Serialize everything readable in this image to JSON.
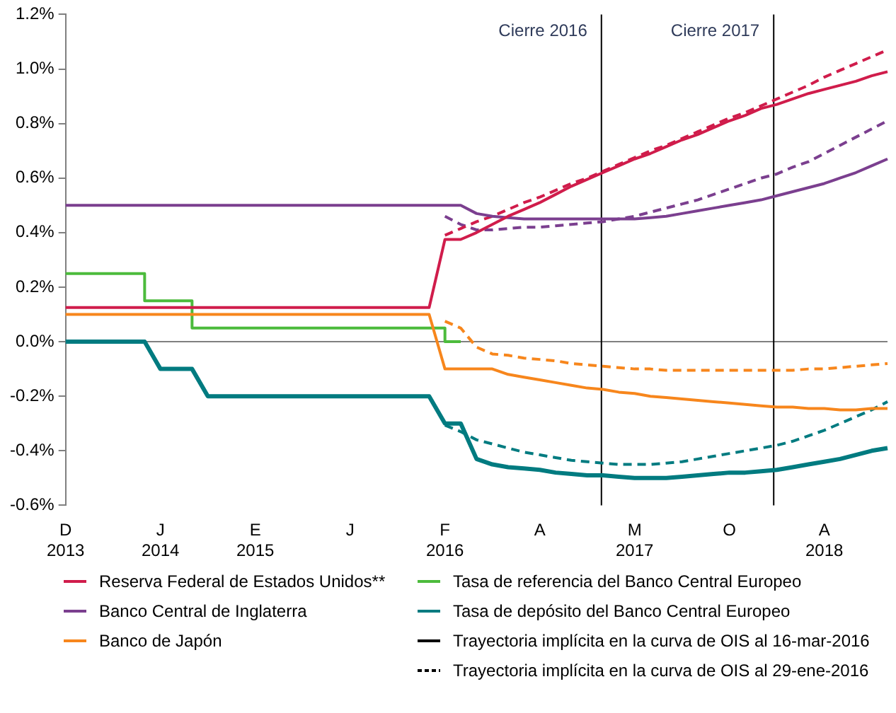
{
  "chart_data": {
    "type": "line",
    "categories": [
      "D\n2013",
      null,
      null,
      null,
      null,
      null,
      "J\n2014",
      null,
      null,
      null,
      null,
      null,
      "E\n2015",
      null,
      null,
      null,
      null,
      null,
      "J",
      null,
      null,
      null,
      null,
      null,
      "F\n2016",
      null,
      null,
      null,
      null,
      null,
      "A",
      null,
      null,
      null,
      null,
      null,
      "M\n2017",
      null,
      null,
      null,
      null,
      null,
      "O",
      null,
      null,
      null,
      null,
      null,
      "A\n2018",
      null,
      null,
      null,
      null
    ],
    "ylim": [
      -0.6,
      1.2
    ],
    "yticks": [
      {
        "value": -0.6,
        "label": "-0.6%"
      },
      {
        "value": -0.4,
        "label": "-0.4%"
      },
      {
        "value": -0.2,
        "label": "-0.2%"
      },
      {
        "value": 0,
        "label": "0.0%"
      },
      {
        "value": 0.2,
        "label": "0.2%"
      },
      {
        "value": 0.4,
        "label": "0.4%"
      },
      {
        "value": 0.6,
        "label": "0.6%"
      },
      {
        "value": 0.8,
        "label": "0.8%"
      },
      {
        "value": 1.0,
        "label": "1.0%"
      },
      {
        "value": 1.2,
        "label": "1.2%"
      }
    ],
    "grid": false,
    "legend": "bottom",
    "marker": "none",
    "ref_lines": [
      {
        "axis": "y",
        "value": 0,
        "color": "#808080"
      }
    ],
    "annotations": [
      "Cierre 2016",
      "Cierre 2017"
    ],
    "series": [
      {
        "name": "Reserva Federal de Estados Unidos**",
        "color": "#d01c4b",
        "line_style": "solid",
        "values": [
          0.125,
          0.125,
          0.125,
          0.125,
          0.125,
          0.125,
          0.125,
          0.125,
          0.125,
          0.125,
          0.125,
          0.125,
          0.125,
          0.125,
          0.125,
          0.125,
          0.125,
          0.125,
          0.125,
          0.125,
          0.125,
          0.125,
          0.125,
          0.125,
          0.375,
          0.375,
          0.4,
          0.43,
          0.46,
          0.485,
          0.51,
          0.54,
          0.57,
          0.595,
          0.62,
          0.645,
          0.67,
          0.69,
          0.715,
          0.74,
          0.76,
          0.785,
          0.81,
          0.83,
          0.855,
          0.87,
          0.89,
          0.91,
          0.925,
          0.94,
          0.955,
          0.975,
          0.99
        ]
      },
      {
        "name": "Banco Central de Inglaterra",
        "color": "#7b3f8f",
        "line_style": "solid",
        "values": [
          0.5,
          0.5,
          0.5,
          0.5,
          0.5,
          0.5,
          0.5,
          0.5,
          0.5,
          0.5,
          0.5,
          0.5,
          0.5,
          0.5,
          0.5,
          0.5,
          0.5,
          0.5,
          0.5,
          0.5,
          0.5,
          0.5,
          0.5,
          0.5,
          0.5,
          0.5,
          0.47,
          0.46,
          0.455,
          0.45,
          0.45,
          0.45,
          0.45,
          0.45,
          0.45,
          0.45,
          0.45,
          0.455,
          0.46,
          0.47,
          0.48,
          0.49,
          0.5,
          0.51,
          0.52,
          0.535,
          0.55,
          0.565,
          0.58,
          0.6,
          0.62,
          0.645,
          0.67
        ]
      },
      {
        "name": "Banco de Japón",
        "color": "#f7861c",
        "line_style": "solid",
        "values": [
          0.1,
          0.1,
          0.1,
          0.1,
          0.1,
          0.1,
          0.1,
          0.1,
          0.1,
          0.1,
          0.1,
          0.1,
          0.1,
          0.1,
          0.1,
          0.1,
          0.1,
          0.1,
          0.1,
          0.1,
          0.1,
          0.1,
          0.1,
          0.1,
          -0.1,
          -0.1,
          -0.1,
          -0.1,
          -0.12,
          -0.13,
          -0.14,
          -0.15,
          -0.16,
          -0.17,
          -0.175,
          -0.185,
          -0.19,
          -0.2,
          -0.205,
          -0.21,
          -0.215,
          -0.22,
          -0.225,
          -0.23,
          -0.235,
          -0.24,
          -0.24,
          -0.245,
          -0.245,
          -0.25,
          -0.25,
          -0.245,
          -0.245
        ]
      },
      {
        "name": "Tasa de referencia del Banco Central Europeo",
        "type": "step",
        "color": "#4cbb3c",
        "line_style": "solid",
        "values": [
          0.25,
          0.25,
          0.25,
          0.25,
          0.25,
          0.25,
          0.15,
          0.15,
          0.15,
          0.05,
          0.05,
          0.05,
          0.05,
          0.05,
          0.05,
          0.05,
          0.05,
          0.05,
          0.05,
          0.05,
          0.05,
          0.05,
          0.05,
          0.05,
          0.05,
          0,
          null,
          null,
          null,
          null,
          null,
          null,
          null,
          null,
          null,
          null,
          null,
          null,
          null,
          null,
          null,
          null,
          null,
          null,
          null,
          null,
          null,
          null,
          null,
          null,
          null,
          null,
          null
        ]
      },
      {
        "name": "Tasa de depósito del Banco Central Europeo",
        "color": "#007b80",
        "line_style": "solid",
        "values": [
          0,
          0,
          0,
          0,
          0,
          0,
          -0.1,
          -0.1,
          -0.1,
          -0.2,
          -0.2,
          -0.2,
          -0.2,
          -0.2,
          -0.2,
          -0.2,
          -0.2,
          -0.2,
          -0.2,
          -0.2,
          -0.2,
          -0.2,
          -0.2,
          -0.2,
          -0.3,
          -0.3,
          -0.43,
          -0.45,
          -0.46,
          -0.465,
          -0.47,
          -0.48,
          -0.485,
          -0.49,
          -0.49,
          -0.495,
          -0.5,
          -0.5,
          -0.5,
          -0.495,
          -0.49,
          -0.485,
          -0.48,
          -0.48,
          -0.475,
          -0.47,
          -0.46,
          -0.45,
          -0.44,
          -0.43,
          -0.415,
          -0.4,
          -0.39
        ]
      },
      {
        "name": "Trayectoria implícita en la curva de OIS al 16-mar-2016",
        "color": "#000000",
        "line_style": "solid",
        "values": [
          null,
          null,
          null,
          null,
          null,
          null,
          null,
          null,
          null,
          null,
          null,
          null,
          null,
          null,
          null,
          null,
          null,
          null,
          null,
          null,
          null,
          null,
          null,
          null,
          null,
          null,
          null,
          null,
          null,
          null,
          null,
          null,
          null,
          null,
          null,
          null,
          null,
          null,
          null,
          null,
          null,
          null,
          null,
          null,
          null,
          null,
          null,
          null,
          null,
          null,
          null,
          null,
          null
        ]
      },
      {
        "name": "Trayectoria implícita en la curva de OIS al 29-ene-2016",
        "color": "#000000",
        "line_style": "dashed",
        "values": [
          null,
          null,
          null,
          null,
          null,
          null,
          null,
          null,
          null,
          null,
          null,
          null,
          null,
          null,
          null,
          null,
          null,
          null,
          null,
          null,
          null,
          null,
          null,
          null,
          null,
          null,
          null,
          null,
          null,
          null,
          null,
          null,
          null,
          null,
          null,
          null,
          null,
          null,
          null,
          null,
          null,
          null,
          null,
          null,
          null,
          null,
          null,
          null,
          null,
          null,
          null,
          null,
          null
        ]
      },
      {
        "color": "#d01c4b",
        "line_style": "dashed",
        "values": [
          null,
          null,
          null,
          null,
          null,
          null,
          null,
          null,
          null,
          null,
          null,
          null,
          null,
          null,
          null,
          null,
          null,
          null,
          null,
          null,
          null,
          null,
          null,
          null,
          0.39,
          0.415,
          0.44,
          0.46,
          0.485,
          0.51,
          0.53,
          0.555,
          0.58,
          0.6,
          0.625,
          0.65,
          0.675,
          0.7,
          0.72,
          0.745,
          0.77,
          0.795,
          0.82,
          0.84,
          0.865,
          0.89,
          0.915,
          0.94,
          0.97,
          0.995,
          1.02,
          1.045,
          1.07
        ]
      },
      {
        "color": "#7b3f8f",
        "line_style": "dashed",
        "values": [
          null,
          null,
          null,
          null,
          null,
          null,
          null,
          null,
          null,
          null,
          null,
          null,
          null,
          null,
          null,
          null,
          null,
          null,
          null,
          null,
          null,
          null,
          null,
          null,
          0.46,
          0.43,
          0.41,
          0.41,
          0.415,
          0.42,
          0.42,
          0.425,
          0.43,
          0.435,
          0.44,
          0.45,
          0.46,
          0.475,
          0.49,
          0.505,
          0.52,
          0.54,
          0.56,
          0.58,
          0.6,
          0.615,
          0.64,
          0.66,
          0.69,
          0.72,
          0.75,
          0.78,
          0.81
        ]
      },
      {
        "color": "#f7861c",
        "line_style": "dashed",
        "values": [
          null,
          null,
          null,
          null,
          null,
          null,
          null,
          null,
          null,
          null,
          null,
          null,
          null,
          null,
          null,
          null,
          null,
          null,
          null,
          null,
          null,
          null,
          null,
          null,
          0.075,
          0.05,
          -0.02,
          -0.045,
          -0.05,
          -0.06,
          -0.065,
          -0.07,
          -0.08,
          -0.085,
          -0.09,
          -0.095,
          -0.1,
          -0.1,
          -0.105,
          -0.105,
          -0.105,
          -0.105,
          -0.105,
          -0.105,
          -0.105,
          -0.105,
          -0.105,
          -0.1,
          -0.1,
          -0.095,
          -0.09,
          -0.085,
          -0.08
        ]
      },
      {
        "color": "#007b80",
        "line_style": "dashed",
        "values": [
          null,
          null,
          null,
          null,
          null,
          null,
          null,
          null,
          null,
          null,
          null,
          null,
          null,
          null,
          null,
          null,
          null,
          null,
          null,
          null,
          null,
          null,
          null,
          null,
          -0.306,
          -0.33,
          -0.36,
          -0.375,
          -0.39,
          -0.405,
          -0.415,
          -0.425,
          -0.435,
          -0.44,
          -0.445,
          -0.45,
          -0.45,
          -0.45,
          -0.445,
          -0.44,
          -0.43,
          -0.42,
          -0.41,
          -0.4,
          -0.39,
          -0.38,
          -0.365,
          -0.345,
          -0.325,
          -0.3,
          -0.275,
          -0.25,
          -0.22
        ]
      }
    ]
  }
}
